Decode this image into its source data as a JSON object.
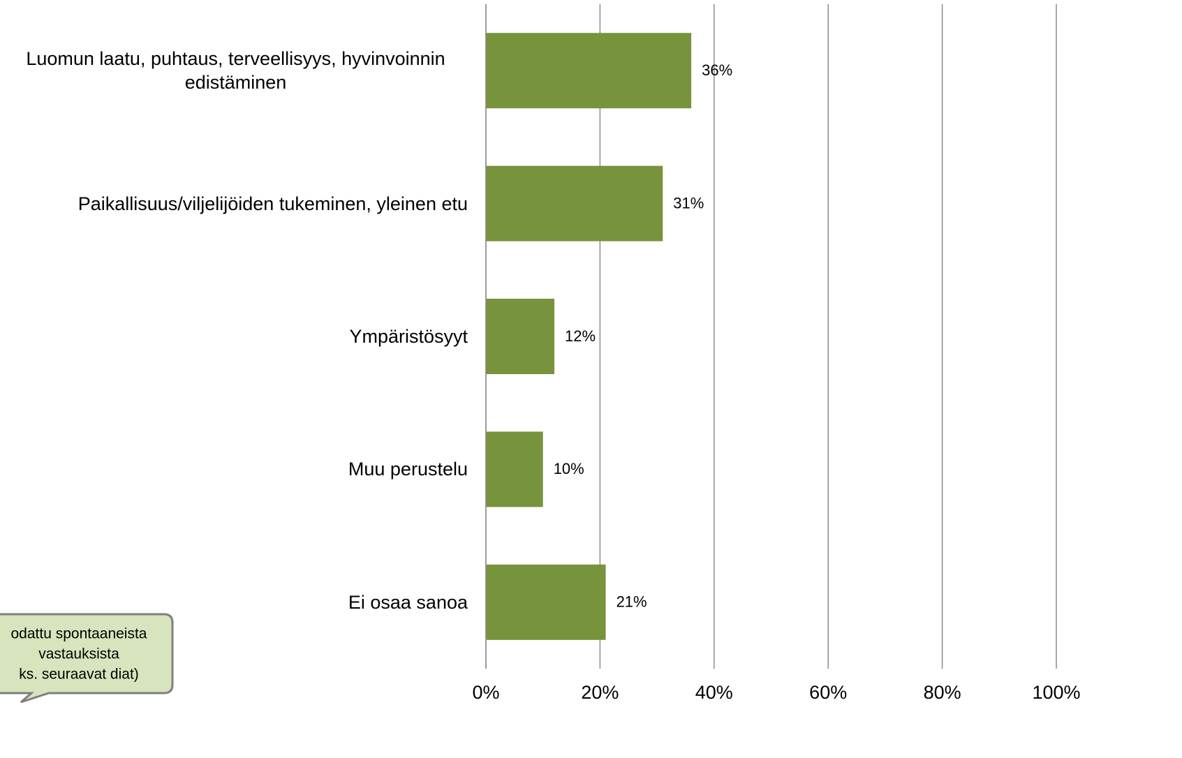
{
  "chart_data": {
    "type": "bar",
    "orientation": "horizontal",
    "categories": [
      "Luomun laatu, puhtaus, terveellisyys, hyvinvoinnin edistäminen",
      "Paikallisuus/viljelijöiden tukeminen, yleinen etu",
      "Ympäristösyyt",
      "Muu perustelu",
      "Ei osaa sanoa"
    ],
    "values": [
      36,
      31,
      12,
      10,
      21
    ],
    "value_labels": [
      "36%",
      "31%",
      "12%",
      "10%",
      "21%"
    ],
    "color": "#77933c",
    "xlim": [
      0,
      100
    ],
    "xticks": [
      {
        "value": 0,
        "label": "0%"
      },
      {
        "value": 20,
        "label": "20%"
      },
      {
        "value": 40,
        "label": "40%"
      },
      {
        "value": 60,
        "label": "60%"
      },
      {
        "value": 80,
        "label": "80%"
      },
      {
        "value": 100,
        "label": "100%"
      }
    ],
    "grid": true,
    "annotation": [
      "odattu spontaaneista",
      "vastauksista",
      "ks. seuraavat diat)"
    ]
  }
}
